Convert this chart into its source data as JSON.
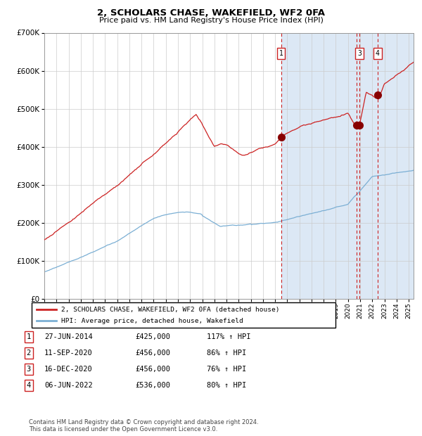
{
  "title": "2, SCHOLARS CHASE, WAKEFIELD, WF2 0FA",
  "subtitle": "Price paid vs. HM Land Registry's House Price Index (HPI)",
  "footnote": "Contains HM Land Registry data © Crown copyright and database right 2024.\nThis data is licensed under the Open Government Licence v3.0.",
  "legend_house": "2, SCHOLARS CHASE, WAKEFIELD, WF2 0FA (detached house)",
  "legend_hpi": "HPI: Average price, detached house, Wakefield",
  "transactions": [
    {
      "num": 1,
      "date": "27-JUN-2014",
      "price": 425000,
      "pct": "117%",
      "dir": "↑",
      "year": 2014.49,
      "show_top_label": true
    },
    {
      "num": 2,
      "date": "11-SEP-2020",
      "price": 456000,
      "pct": "86%",
      "dir": "↑",
      "year": 2020.7,
      "show_top_label": false
    },
    {
      "num": 3,
      "date": "16-DEC-2020",
      "price": 456000,
      "pct": "76%",
      "dir": "↑",
      "year": 2020.96,
      "show_top_label": true
    },
    {
      "num": 4,
      "date": "06-JUN-2022",
      "price": 536000,
      "pct": "80%",
      "dir": "↑",
      "year": 2022.43,
      "show_top_label": true
    }
  ],
  "hpi_color": "#7bafd4",
  "house_color": "#cc2222",
  "dot_color": "#880000",
  "vline_color": "#cc2222",
  "shade_color": "#dce8f5",
  "grid_color": "#cccccc",
  "ylim": [
    0,
    700000
  ],
  "yticks": [
    0,
    100000,
    200000,
    300000,
    400000,
    500000,
    600000,
    700000
  ],
  "ytick_labels": [
    "£0",
    "£100K",
    "£200K",
    "£300K",
    "£400K",
    "£500K",
    "£600K",
    "£700K"
  ],
  "xstart": 1995,
  "xend": 2025
}
